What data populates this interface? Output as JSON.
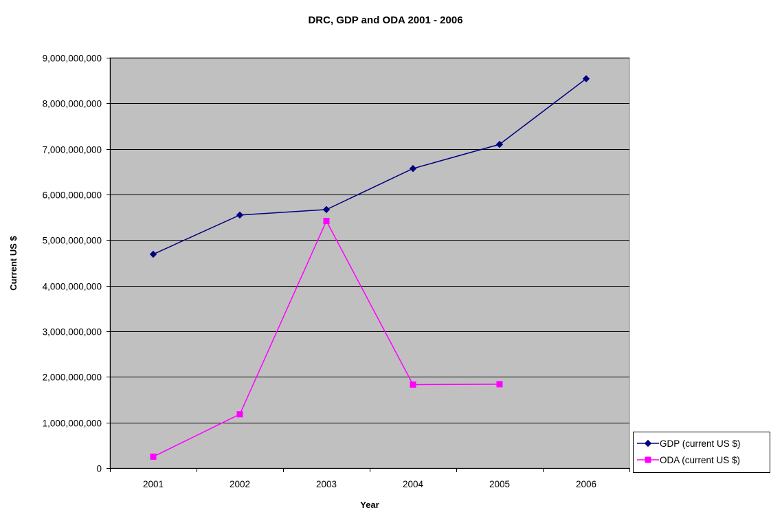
{
  "chart_data": {
    "type": "line",
    "title": "DRC, GDP and ODA 2001 - 2006",
    "xlabel": "Year",
    "ylabel": "Current US $",
    "categories": [
      "2001",
      "2002",
      "2003",
      "2004",
      "2005",
      "2006"
    ],
    "ylim": [
      0,
      9000000000
    ],
    "yticks": [
      0,
      1000000000,
      2000000000,
      3000000000,
      4000000000,
      5000000000,
      6000000000,
      7000000000,
      8000000000,
      9000000000
    ],
    "ytick_labels": [
      "0",
      "1,000,000,000",
      "2,000,000,000",
      "3,000,000,000",
      "4,000,000,000",
      "5,000,000,000",
      "6,000,000,000",
      "7,000,000,000",
      "8,000,000,000",
      "9,000,000,000"
    ],
    "grid": true,
    "plot_background": "#c0c0c0",
    "legend_position": "bottom-right",
    "series": [
      {
        "name": "GDP (current US $)",
        "color": "#000080",
        "marker": "diamond",
        "values": [
          4690000000,
          5550000000,
          5670000000,
          6570000000,
          7100000000,
          8540000000
        ]
      },
      {
        "name": "ODA (current US $)",
        "color": "#ff00ff",
        "marker": "square",
        "values": [
          250000000,
          1180000000,
          5420000000,
          1830000000,
          1840000000,
          null
        ]
      }
    ]
  }
}
